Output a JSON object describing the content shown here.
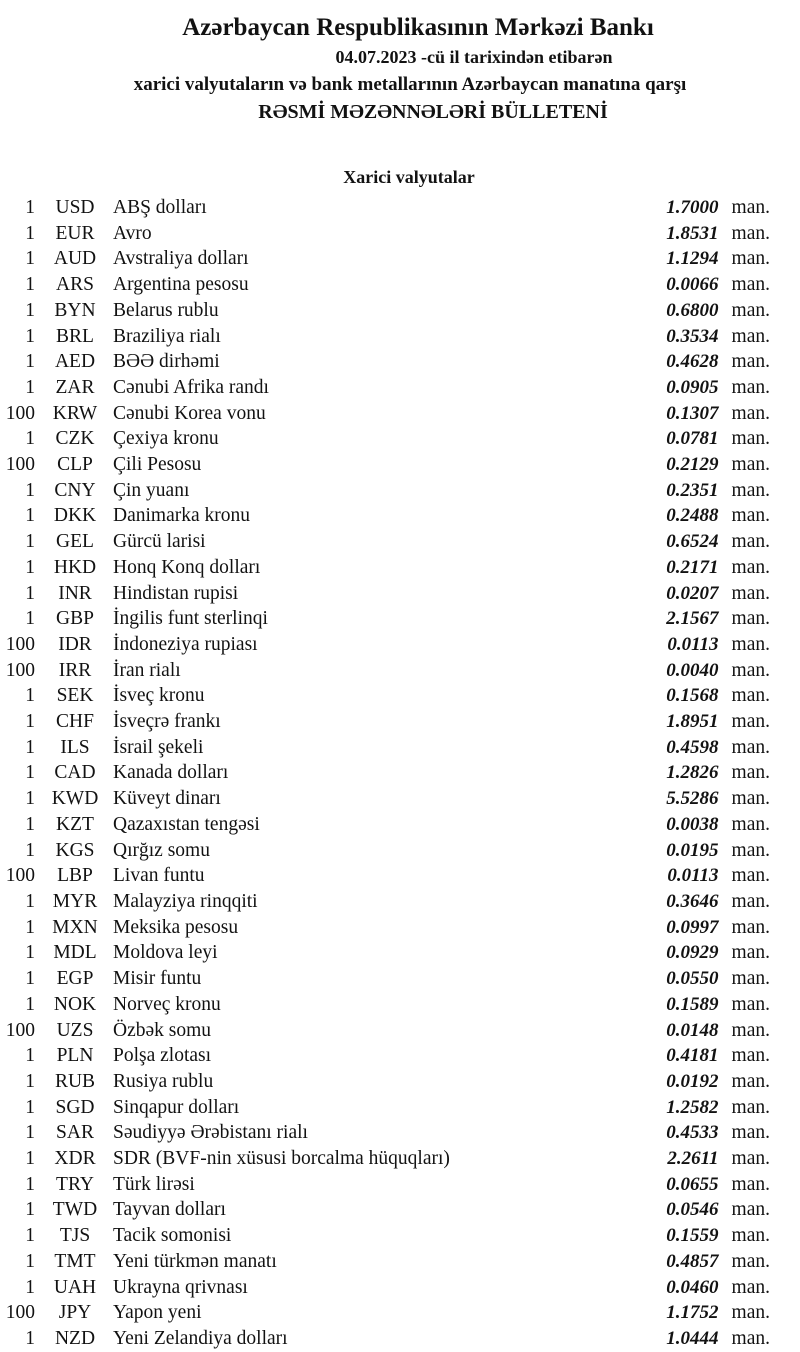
{
  "header": {
    "title": "Azərbaycan Respublikasının Mərkəzi Bankı",
    "date_line": "04.07.2023 -cü il tarixindən etibarən",
    "subtitle": "xarici valyutaların və bank metallarının Azərbaycan manatına qarşı",
    "bulletin_line": "RƏSMİ MƏZƏNNƏLƏRİ BÜLLETENİ"
  },
  "section": {
    "title": "Xarici valyutalar"
  },
  "unit_suffix": "man.",
  "rates": [
    {
      "qty": "1",
      "code": "USD",
      "name": "ABŞ dolları",
      "rate": "1.7000"
    },
    {
      "qty": "1",
      "code": "EUR",
      "name": "Avro",
      "rate": "1.8531"
    },
    {
      "qty": "1",
      "code": "AUD",
      "name": "Avstraliya dolları",
      "rate": "1.1294"
    },
    {
      "qty": "1",
      "code": "ARS",
      "name": "Argentina pesosu",
      "rate": "0.0066"
    },
    {
      "qty": "1",
      "code": "BYN",
      "name": "Belarus rublu",
      "rate": "0.6800"
    },
    {
      "qty": "1",
      "code": "BRL",
      "name": "Braziliya rialı",
      "rate": "0.3534"
    },
    {
      "qty": "1",
      "code": "AED",
      "name": "BƏƏ dirhəmi",
      "rate": "0.4628"
    },
    {
      "qty": "1",
      "code": "ZAR",
      "name": "Cənubi Afrika randı",
      "rate": "0.0905"
    },
    {
      "qty": "100",
      "code": "KRW",
      "name": "Cənubi Korea vonu",
      "rate": "0.1307"
    },
    {
      "qty": "1",
      "code": "CZK",
      "name": "Çexiya kronu",
      "rate": "0.0781"
    },
    {
      "qty": "100",
      "code": "CLP",
      "name": "Çili Pesosu",
      "rate": "0.2129"
    },
    {
      "qty": "1",
      "code": "CNY",
      "name": "Çin yuanı",
      "rate": "0.2351"
    },
    {
      "qty": "1",
      "code": "DKK",
      "name": "Danimarka kronu",
      "rate": "0.2488"
    },
    {
      "qty": "1",
      "code": "GEL",
      "name": "Gürcü larisi",
      "rate": "0.6524"
    },
    {
      "qty": "1",
      "code": "HKD",
      "name": "Honq Konq dolları",
      "rate": "0.2171"
    },
    {
      "qty": "1",
      "code": "INR",
      "name": "Hindistan rupisi",
      "rate": "0.0207"
    },
    {
      "qty": "1",
      "code": "GBP",
      "name": "İngilis funt sterlinqi",
      "rate": "2.1567"
    },
    {
      "qty": "100",
      "code": "IDR",
      "name": "İndoneziya rupiası",
      "rate": "0.0113"
    },
    {
      "qty": "100",
      "code": "IRR",
      "name": "İran rialı",
      "rate": "0.0040"
    },
    {
      "qty": "1",
      "code": "SEK",
      "name": "İsveç kronu",
      "rate": "0.1568"
    },
    {
      "qty": "1",
      "code": "CHF",
      "name": "İsveçrə frankı",
      "rate": "1.8951"
    },
    {
      "qty": "1",
      "code": "ILS",
      "name": "İsrail şekeli",
      "rate": "0.4598"
    },
    {
      "qty": "1",
      "code": "CAD",
      "name": "Kanada dolları",
      "rate": "1.2826"
    },
    {
      "qty": "1",
      "code": "KWD",
      "name": "Küveyt dinarı",
      "rate": "5.5286"
    },
    {
      "qty": "1",
      "code": "KZT",
      "name": "Qazaxıstan tengəsi",
      "rate": "0.0038"
    },
    {
      "qty": "1",
      "code": "KGS",
      "name": "Qırğız somu",
      "rate": "0.0195"
    },
    {
      "qty": "100",
      "code": "LBP",
      "name": "Livan funtu",
      "rate": "0.0113"
    },
    {
      "qty": "1",
      "code": "MYR",
      "name": "Malayziya rinqqiti",
      "rate": "0.3646"
    },
    {
      "qty": "1",
      "code": "MXN",
      "name": "Meksika pesosu",
      "rate": "0.0997"
    },
    {
      "qty": "1",
      "code": "MDL",
      "name": "Moldova leyi",
      "rate": "0.0929"
    },
    {
      "qty": "1",
      "code": "EGP",
      "name": "Misir funtu",
      "rate": "0.0550"
    },
    {
      "qty": "1",
      "code": "NOK",
      "name": "Norveç kronu",
      "rate": "0.1589"
    },
    {
      "qty": "100",
      "code": "UZS",
      "name": "Özbək somu",
      "rate": "0.0148"
    },
    {
      "qty": "1",
      "code": "PLN",
      "name": "Polşa zlotası",
      "rate": "0.4181"
    },
    {
      "qty": "1",
      "code": "RUB",
      "name": "Rusiya rublu",
      "rate": "0.0192"
    },
    {
      "qty": "1",
      "code": "SGD",
      "name": "Sinqapur dolları",
      "rate": "1.2582"
    },
    {
      "qty": "1",
      "code": "SAR",
      "name": "Səudiyyə Ərəbistanı rialı",
      "rate": "0.4533"
    },
    {
      "qty": "1",
      "code": "XDR",
      "name": "SDR (BVF-nin xüsusi borcalma hüquqları)",
      "rate": "2.2611"
    },
    {
      "qty": "1",
      "code": "TRY",
      "name": "Türk lirəsi",
      "rate": "0.0655"
    },
    {
      "qty": "1",
      "code": "TWD",
      "name": "Tayvan dolları",
      "rate": "0.0546"
    },
    {
      "qty": "1",
      "code": "TJS",
      "name": "Tacik somonisi",
      "rate": "0.1559"
    },
    {
      "qty": "1",
      "code": "TMT",
      "name": "Yeni türkmən manatı",
      "rate": "0.4857"
    },
    {
      "qty": "1",
      "code": "UAH",
      "name": "Ukrayna qrivnası",
      "rate": "0.0460"
    },
    {
      "qty": "100",
      "code": "JPY",
      "name": "Yapon yeni",
      "rate": "1.1752"
    },
    {
      "qty": "1",
      "code": "NZD",
      "name": "Yeni Zelandiya dolları",
      "rate": "1.0444"
    }
  ]
}
